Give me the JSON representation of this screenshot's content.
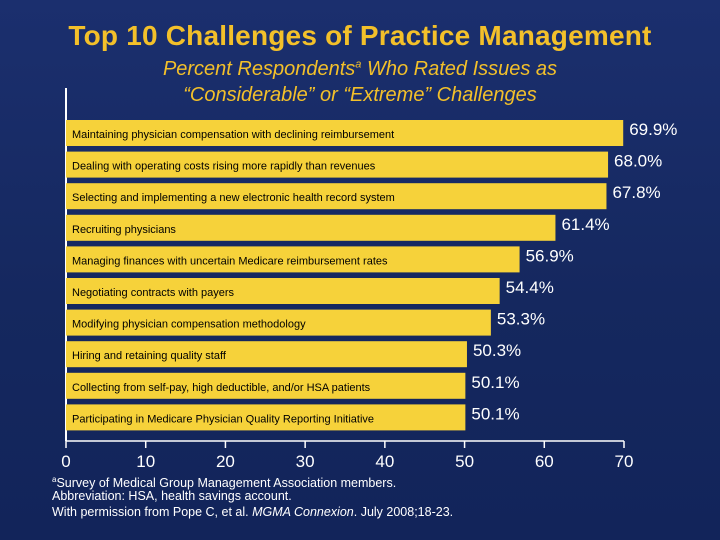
{
  "title": "Top 10 Challenges of Practice Management",
  "subtitle_line1_prefix": "Percent Respondents",
  "subtitle_sup": "a",
  "subtitle_line1_suffix": " Who Rated Issues as",
  "subtitle_line2": "“Considerable” or “Extreme” Challenges",
  "footnotes": {
    "sup": "a",
    "line1": "Survey of Medical Group Management Association members.",
    "line2": "Abbreviation: HSA, health savings account.",
    "line3_prefix": "With permission from Pope C, et al. ",
    "line3_journal": "MGMA Connexion",
    "line3_suffix": ". July 2008;18-23."
  },
  "colors": {
    "bar": "#f6d23a",
    "title": "#f3c02a",
    "background": "#15285f"
  },
  "chart_data": {
    "type": "bar",
    "orientation": "horizontal",
    "title": "Top 10 Challenges of Practice Management",
    "xlabel": "",
    "ylabel": "",
    "xlim": [
      0,
      70
    ],
    "x_ticks": [
      "0",
      "10",
      "20",
      "30",
      "40",
      "50",
      "60",
      "70"
    ],
    "grid": false,
    "categories": [
      "Maintaining physician compensation with declining reimbursement",
      "Dealing with operating costs rising more rapidly than revenues",
      "Selecting and implementing a new electronic health record system",
      "Recruiting physicians",
      "Managing finances with uncertain Medicare reimbursement rates",
      "Negotiating contracts with payers",
      "Modifying physician compensation methodology",
      "Hiring and retaining quality staff",
      "Collecting from self-pay, high deductible, and/or HSA patients",
      "Participating in Medicare Physician Quality Reporting Initiative"
    ],
    "values": [
      69.9,
      68.0,
      67.8,
      61.4,
      56.9,
      54.4,
      53.3,
      50.3,
      50.1,
      50.1
    ],
    "value_labels": [
      "69.9%",
      "68.0%",
      "67.8%",
      "61.4%",
      "56.9%",
      "54.4%",
      "53.3%",
      "50.3%",
      "50.1%",
      "50.1%"
    ]
  }
}
